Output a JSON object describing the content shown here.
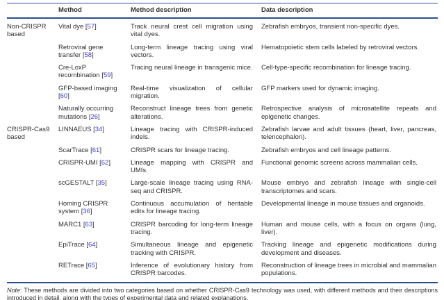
{
  "colors": {
    "rule": "#2d4d8e",
    "citation": "#4040cf",
    "text": "#2f2f2f"
  },
  "citation_format": {
    "open": "[",
    "close": "]"
  },
  "table": {
    "headers": {
      "group": "",
      "method": "Method",
      "method_description": "Method description",
      "data_description": "Data description"
    },
    "groups": [
      {
        "label": "Non-CRISPR based",
        "rows": [
          {
            "method": "Vital dye",
            "ref": "57",
            "method_description": "Track neural crest cell migration using vital dyes.",
            "data_description": "Zebrafish embryos, transient non-specific dyes."
          },
          {
            "method": "Retroviral gene transfer",
            "ref": "58",
            "method_description": "Long-term lineage tracing using viral vectors.",
            "data_description": "Hematopoietic stem cells labeled by retroviral vectors."
          },
          {
            "method": "Cre-LoxP recombination",
            "ref": "59",
            "method_description": "Tracing neural lineage in transgenic mice.",
            "data_description": "Cell-type-specific recombination for lineage tracing."
          },
          {
            "method": "GFP-based imaging",
            "ref": "60",
            "method_description": "Real-time visualization of cellular migration.",
            "data_description": "GFP markers used for dynamic imaging."
          },
          {
            "method": "Naturally occurring mutations",
            "ref": "26",
            "method_description": "Reconstruct lineage trees from genetic alterations.",
            "data_description": "Retrospective analysis of microsatellite repeats and epigenetic changes."
          }
        ]
      },
      {
        "label": "CRISPR-Cas9 based",
        "rows": [
          {
            "method": "LINNAEUS",
            "ref": "34",
            "method_description": "Lineage tracing with CRISPR-induced indels.",
            "data_description": "Zebrafish larvae and adult tissues (heart, liver, pancreas, telencephalon)."
          },
          {
            "method": "ScarTrace",
            "ref": "61",
            "method_description": "CRISPR scars for lineage tracing.",
            "data_description": "Zebrafish embryos and cell lineage patterns."
          },
          {
            "method": "CRISPR-UMI",
            "ref": "62",
            "method_description": "Lineage mapping with CRISPR and UMIs.",
            "data_description": "Functional genomic screens across mammalian cells."
          },
          {
            "method": "scGESTALT",
            "ref": "35",
            "method_description": "Large-scale lineage tracing using RNA-seq and CRISPR.",
            "data_description": "Mouse embryo and zebrafish lineage with single-cell transcriptomes and scars."
          },
          {
            "method": "Homing CRISPR system",
            "ref": "36",
            "method_description": "Continuous accumulation of heritable edits for lineage tracing.",
            "data_description": "Developmental lineage in mouse tissues and organoids."
          },
          {
            "method": "MARC1",
            "ref": "63",
            "method_description": "CRISPR barcoding for long-term lineage tracing.",
            "data_description": "Human and mouse cells, with a focus on organs (lung, liver)."
          },
          {
            "method": "EpiTrace",
            "ref": "64",
            "method_description": "Simultaneous lineage and epigenetic tracking with CRISPR.",
            "data_description": "Tracking lineage and epigenetic modifications during development and diseases."
          },
          {
            "method": "RETrace",
            "ref": "65",
            "method_description": "Inference of evolutionary history from CRISPR barcodes.",
            "data_description": "Reconstruction of lineage trees in microbial and mammalian populations."
          }
        ]
      }
    ]
  },
  "note": {
    "label": "Note",
    "text": ": These methods are divided into two categories based on whether CRISPR-Cas9 technology was used, with different methods and their descriptions introduced in detail, along with the types of experimental data and related explanations."
  }
}
